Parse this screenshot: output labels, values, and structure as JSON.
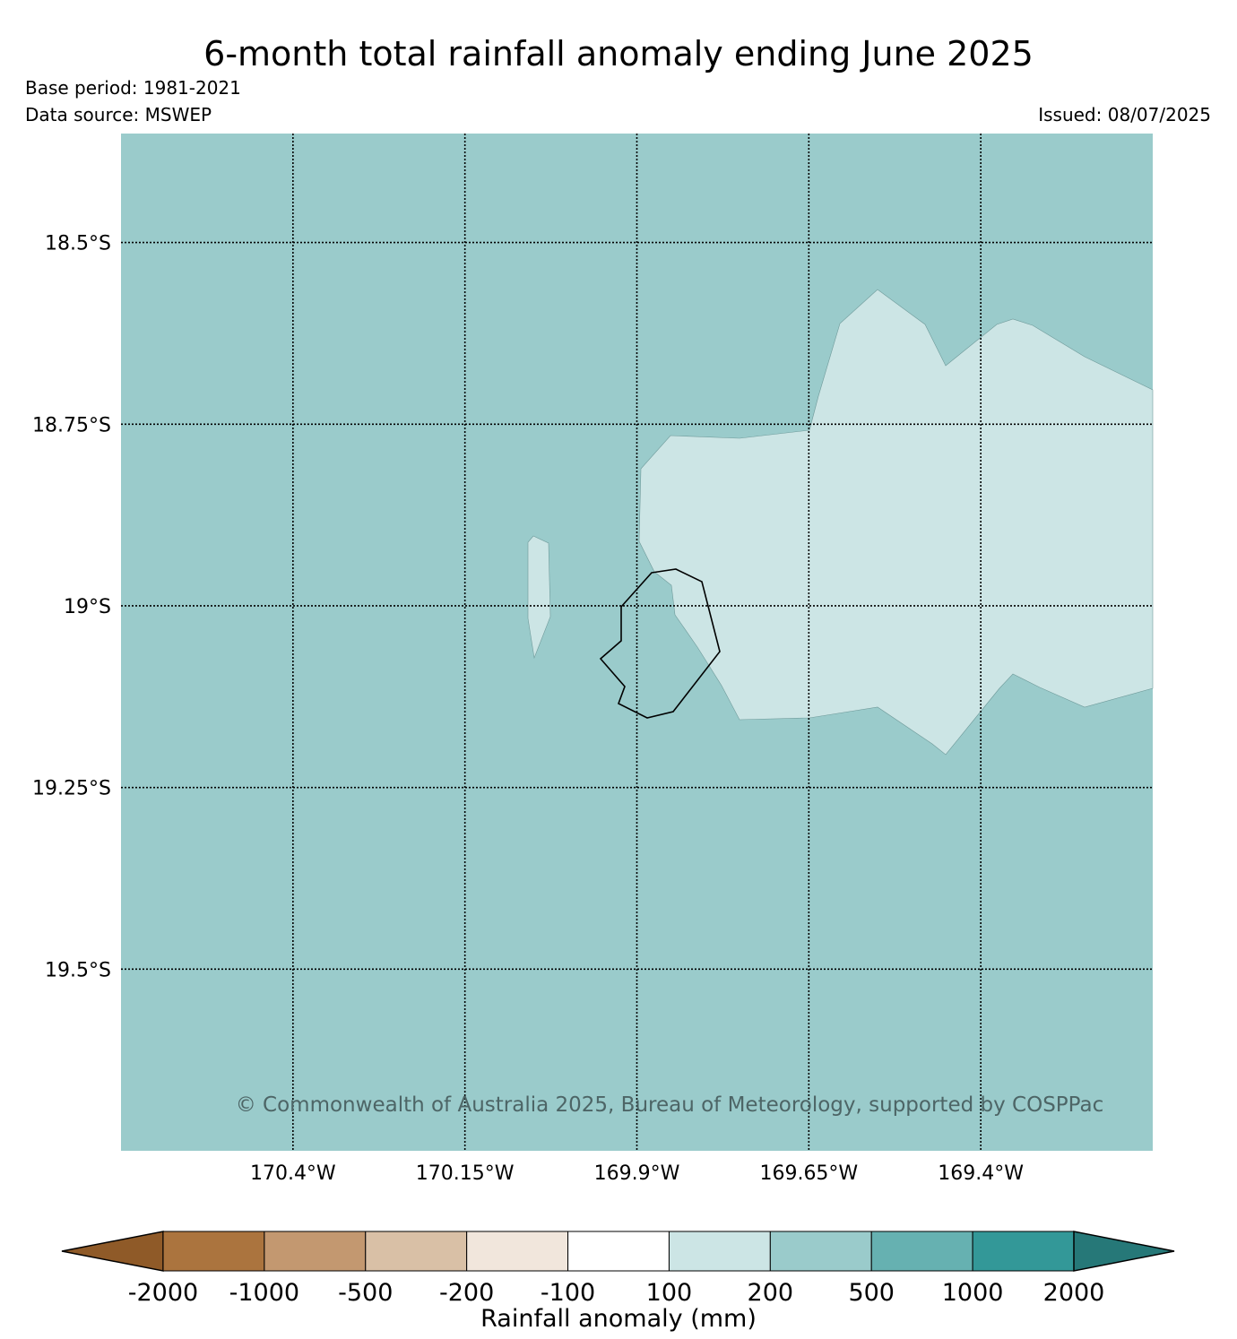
{
  "header": {
    "title": "6-month total rainfall anomaly ending June 2025",
    "base_period": "Base period: 1981-2021",
    "data_source": "Data source: MSWEP",
    "issued": "Issued: 08/07/2025"
  },
  "map": {
    "longitude_ticks": [
      {
        "value": -170.4,
        "label": "170.4°W"
      },
      {
        "value": -170.15,
        "label": "170.15°W"
      },
      {
        "value": -169.9,
        "label": "169.9°W"
      },
      {
        "value": -169.65,
        "label": "169.65°W"
      },
      {
        "value": -169.4,
        "label": "169.4°W"
      }
    ],
    "latitude_ticks": [
      {
        "value": -18.5,
        "label": "18.5°S"
      },
      {
        "value": -18.75,
        "label": "18.75°S"
      },
      {
        "value": -19.0,
        "label": "19°S"
      },
      {
        "value": -19.25,
        "label": "19.25°S"
      },
      {
        "value": -19.5,
        "label": "19.5°S"
      }
    ],
    "extent": {
      "lon_min": -170.65,
      "lon_max": -169.15,
      "lat_max": -18.35,
      "lat_min": -19.75
    },
    "background_class": "200 to 500 mm",
    "background_color": "#9acbcb",
    "anomaly_region_class": "100 to 200 mm",
    "anomaly_region_color": "#cce5e5",
    "copyright": "© Commonwealth of Australia 2025, Bureau of Meteorology, supported by COSPPac"
  },
  "colorbar": {
    "label": "Rainfall anomaly (mm)",
    "tick_labels": [
      "-2000",
      "-1000",
      "-500",
      "-200",
      "-100",
      "100",
      "200",
      "500",
      "1000",
      "2000"
    ],
    "segment_colors": [
      "#8f5a28",
      "#ab743e",
      "#c39870",
      "#d9c0a6",
      "#f1e6dc",
      "#ffffff",
      "#cce5e5",
      "#9acbcb",
      "#66b1b1",
      "#339898",
      "#267878"
    ]
  }
}
